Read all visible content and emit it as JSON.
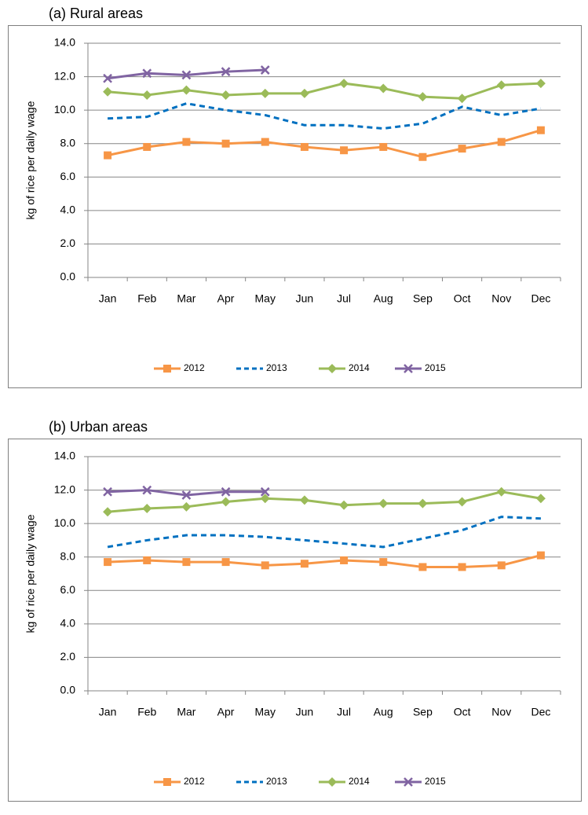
{
  "chart_data": [
    {
      "type": "line",
      "title": "(a)   Rural areas",
      "ylabel": "kg of rice per daily wage",
      "categories": [
        "Jan",
        "Feb",
        "Mar",
        "Apr",
        "May",
        "Jun",
        "Jul",
        "Aug",
        "Sep",
        "Oct",
        "Nov",
        "Dec"
      ],
      "ylim": [
        0,
        14
      ],
      "yticks": [
        {
          "value": 0,
          "label": "0.0"
        },
        {
          "value": 2,
          "label": "2.0"
        },
        {
          "value": 4,
          "label": "4.0"
        },
        {
          "value": 6,
          "label": "6.0"
        },
        {
          "value": 8,
          "label": "8.0"
        },
        {
          "value": 10,
          "label": "10.0"
        },
        {
          "value": 12,
          "label": "12.0"
        },
        {
          "value": 14,
          "label": "14.0"
        }
      ],
      "grid": true,
      "legend": "bottom",
      "series": [
        {
          "name": "2012",
          "color": "#f79646",
          "marker": "square",
          "dash": false,
          "values": [
            7.3,
            7.8,
            8.1,
            8.0,
            8.1,
            7.8,
            7.6,
            7.8,
            7.2,
            7.7,
            8.1,
            8.8
          ]
        },
        {
          "name": "2013",
          "color": "#0070c0",
          "marker": "none",
          "dash": true,
          "values": [
            9.5,
            9.6,
            10.4,
            10.0,
            9.7,
            9.1,
            9.1,
            8.9,
            9.2,
            10.2,
            9.7,
            10.1
          ]
        },
        {
          "name": "2014",
          "color": "#9bbb59",
          "marker": "diamond",
          "dash": false,
          "values": [
            11.1,
            10.9,
            11.2,
            10.9,
            11.0,
            11.0,
            11.6,
            11.3,
            10.8,
            10.7,
            11.5,
            11.6
          ]
        },
        {
          "name": "2015",
          "color": "#8064a2",
          "marker": "x",
          "dash": false,
          "values": [
            11.9,
            12.2,
            12.1,
            12.3,
            12.4,
            null,
            null,
            null,
            null,
            null,
            null,
            null
          ]
        }
      ]
    },
    {
      "type": "line",
      "title": "(b)   Urban areas",
      "ylabel": "kg of rice per daily wage",
      "categories": [
        "Jan",
        "Feb",
        "Mar",
        "Apr",
        "May",
        "Jun",
        "Jul",
        "Aug",
        "Sep",
        "Oct",
        "Nov",
        "Dec"
      ],
      "ylim": [
        0,
        14
      ],
      "yticks": [
        {
          "value": 0,
          "label": "0.0"
        },
        {
          "value": 2,
          "label": "2.0"
        },
        {
          "value": 4,
          "label": "4.0"
        },
        {
          "value": 6,
          "label": "6.0"
        },
        {
          "value": 8,
          "label": "8.0"
        },
        {
          "value": 10,
          "label": "10.0"
        },
        {
          "value": 12,
          "label": "12.0"
        },
        {
          "value": 14,
          "label": "14.0"
        }
      ],
      "grid": true,
      "legend": "bottom",
      "series": [
        {
          "name": "2012",
          "color": "#f79646",
          "marker": "square",
          "dash": false,
          "values": [
            7.7,
            7.8,
            7.7,
            7.7,
            7.5,
            7.6,
            7.8,
            7.7,
            7.4,
            7.4,
            7.5,
            8.1
          ]
        },
        {
          "name": "2013",
          "color": "#0070c0",
          "marker": "none",
          "dash": true,
          "values": [
            8.6,
            9.0,
            9.3,
            9.3,
            9.2,
            9.0,
            8.8,
            8.6,
            9.1,
            9.6,
            10.4,
            10.3
          ]
        },
        {
          "name": "2014",
          "color": "#9bbb59",
          "marker": "diamond",
          "dash": false,
          "values": [
            10.7,
            10.9,
            11.0,
            11.3,
            11.5,
            11.4,
            11.1,
            11.2,
            11.2,
            11.3,
            11.9,
            11.5
          ]
        },
        {
          "name": "2015",
          "color": "#8064a2",
          "marker": "x",
          "dash": false,
          "values": [
            11.9,
            12.0,
            11.7,
            11.9,
            11.9,
            null,
            null,
            null,
            null,
            null,
            null,
            null
          ]
        }
      ]
    }
  ]
}
